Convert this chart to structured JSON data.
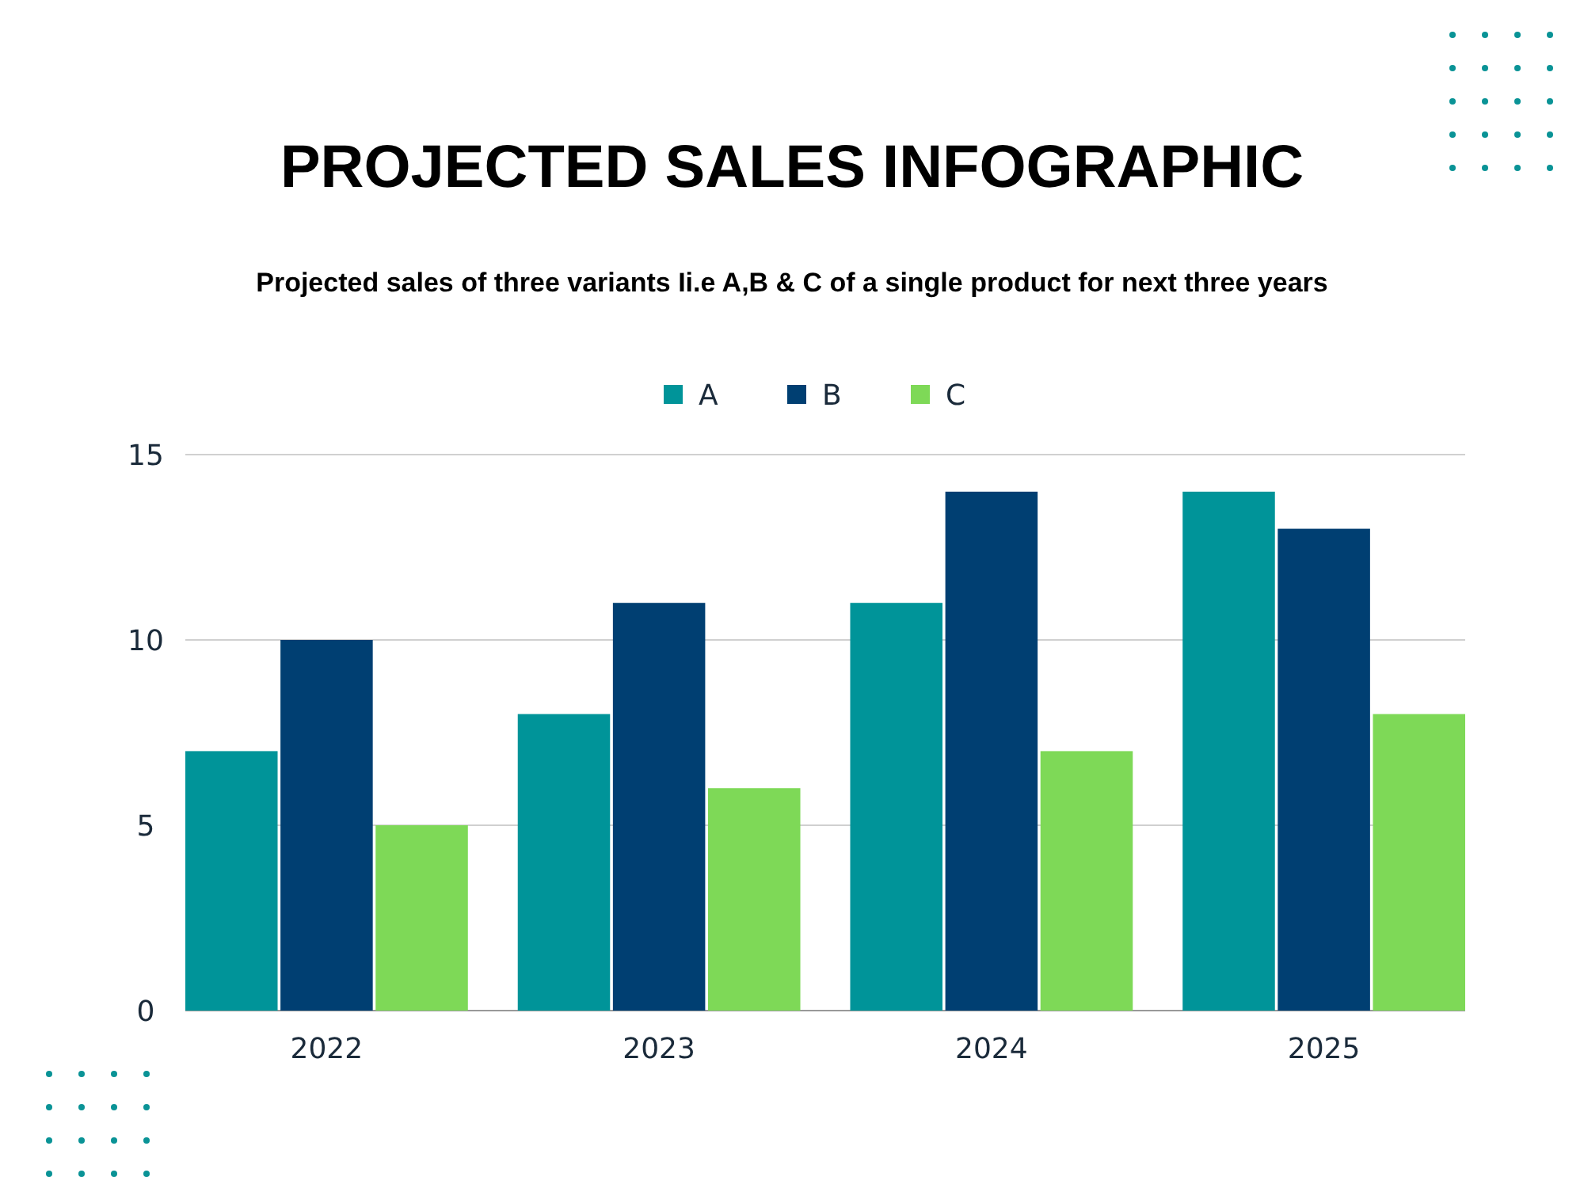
{
  "chart_data": {
    "type": "bar",
    "title": "PROJECTED SALES INFOGRAPHIC",
    "subtitle": "Projected sales of three variants Ii.e A,B & C of a single product for next three years",
    "categories": [
      "2022",
      "2023",
      "2024",
      "2025"
    ],
    "series": [
      {
        "name": "A",
        "color": "#009499",
        "values": [
          7,
          8,
          11,
          14
        ]
      },
      {
        "name": "B",
        "color": "#003f72",
        "values": [
          10,
          11,
          14,
          13
        ]
      },
      {
        "name": "C",
        "color": "#7ed957",
        "values": [
          5,
          6,
          7,
          8
        ]
      }
    ],
    "ylim": [
      0,
      15
    ],
    "yticks": [
      0,
      5,
      10,
      15
    ],
    "grid": "y",
    "legend": "top"
  }
}
